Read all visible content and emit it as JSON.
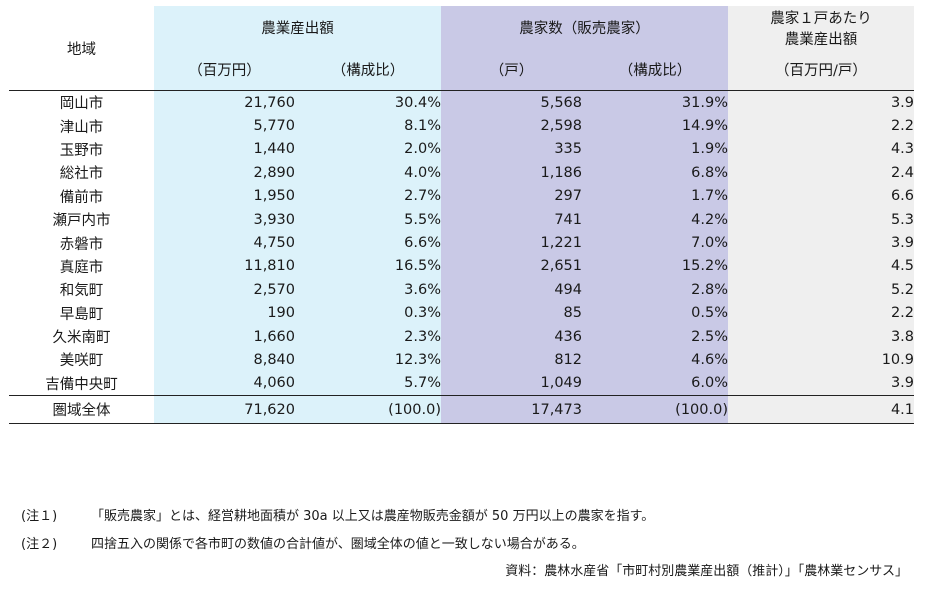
{
  "header": {
    "region": "地域",
    "group1": "農業産出額",
    "group2": "農家数（販売農家）",
    "group3_line1": "農家１戸あたり",
    "group3_line2": "農業産出額",
    "unit_v1": "（百万円）",
    "unit_p1": "（構成比）",
    "unit_v2": "（戸）",
    "unit_p2": "（構成比）",
    "unit_per": "（百万円/戸）"
  },
  "rows": [
    {
      "name": "岡山市",
      "output": "21,760",
      "output_share": "30.4%",
      "farms": "5,568",
      "farms_share": "31.9%",
      "per_farm": "3.9"
    },
    {
      "name": "津山市",
      "output": "5,770",
      "output_share": "8.1%",
      "farms": "2,598",
      "farms_share": "14.9%",
      "per_farm": "2.2"
    },
    {
      "name": "玉野市",
      "output": "1,440",
      "output_share": "2.0%",
      "farms": "335",
      "farms_share": "1.9%",
      "per_farm": "4.3"
    },
    {
      "name": "総社市",
      "output": "2,890",
      "output_share": "4.0%",
      "farms": "1,186",
      "farms_share": "6.8%",
      "per_farm": "2.4"
    },
    {
      "name": "備前市",
      "output": "1,950",
      "output_share": "2.7%",
      "farms": "297",
      "farms_share": "1.7%",
      "per_farm": "6.6"
    },
    {
      "name": "瀬戸内市",
      "output": "3,930",
      "output_share": "5.5%",
      "farms": "741",
      "farms_share": "4.2%",
      "per_farm": "5.3"
    },
    {
      "name": "赤磐市",
      "output": "4,750",
      "output_share": "6.6%",
      "farms": "1,221",
      "farms_share": "7.0%",
      "per_farm": "3.9"
    },
    {
      "name": "真庭市",
      "output": "11,810",
      "output_share": "16.5%",
      "farms": "2,651",
      "farms_share": "15.2%",
      "per_farm": "4.5"
    },
    {
      "name": "和気町",
      "output": "2,570",
      "output_share": "3.6%",
      "farms": "494",
      "farms_share": "2.8%",
      "per_farm": "5.2"
    },
    {
      "name": "早島町",
      "output": "190",
      "output_share": "0.3%",
      "farms": "85",
      "farms_share": "0.5%",
      "per_farm": "2.2"
    },
    {
      "name": "久米南町",
      "output": "1,660",
      "output_share": "2.3%",
      "farms": "436",
      "farms_share": "2.5%",
      "per_farm": "3.8"
    },
    {
      "name": "美咲町",
      "output": "8,840",
      "output_share": "12.3%",
      "farms": "812",
      "farms_share": "4.6%",
      "per_farm": "10.9"
    },
    {
      "name": "吉備中央町",
      "output": "4,060",
      "output_share": "5.7%",
      "farms": "1,049",
      "farms_share": "6.0%",
      "per_farm": "3.9"
    }
  ],
  "total": {
    "name": "圏域全体",
    "output": "71,620",
    "output_share": "(100.0)",
    "farms": "17,473",
    "farms_share": "(100.0)",
    "per_farm": "4.1"
  },
  "notes": {
    "note1_label": "(注１)",
    "note1_text": "「販売農家」とは、経営耕地面積が 30a 以上又は農産物販売金額が 50 万円以上の農家を指す。",
    "note2_label": "(注２)",
    "note2_text": "四捨五入の関係で各市町の数値の合計値が、圏域全体の値と一致しない場合がある。",
    "source": "資料：農林水産省「市町村別農業産出額（推計）」「農林業センサス」"
  },
  "colors": {
    "output_bg": "#dcf2fa",
    "farms_bg": "#c9c9e6",
    "per_farm_bg": "#efefef"
  }
}
